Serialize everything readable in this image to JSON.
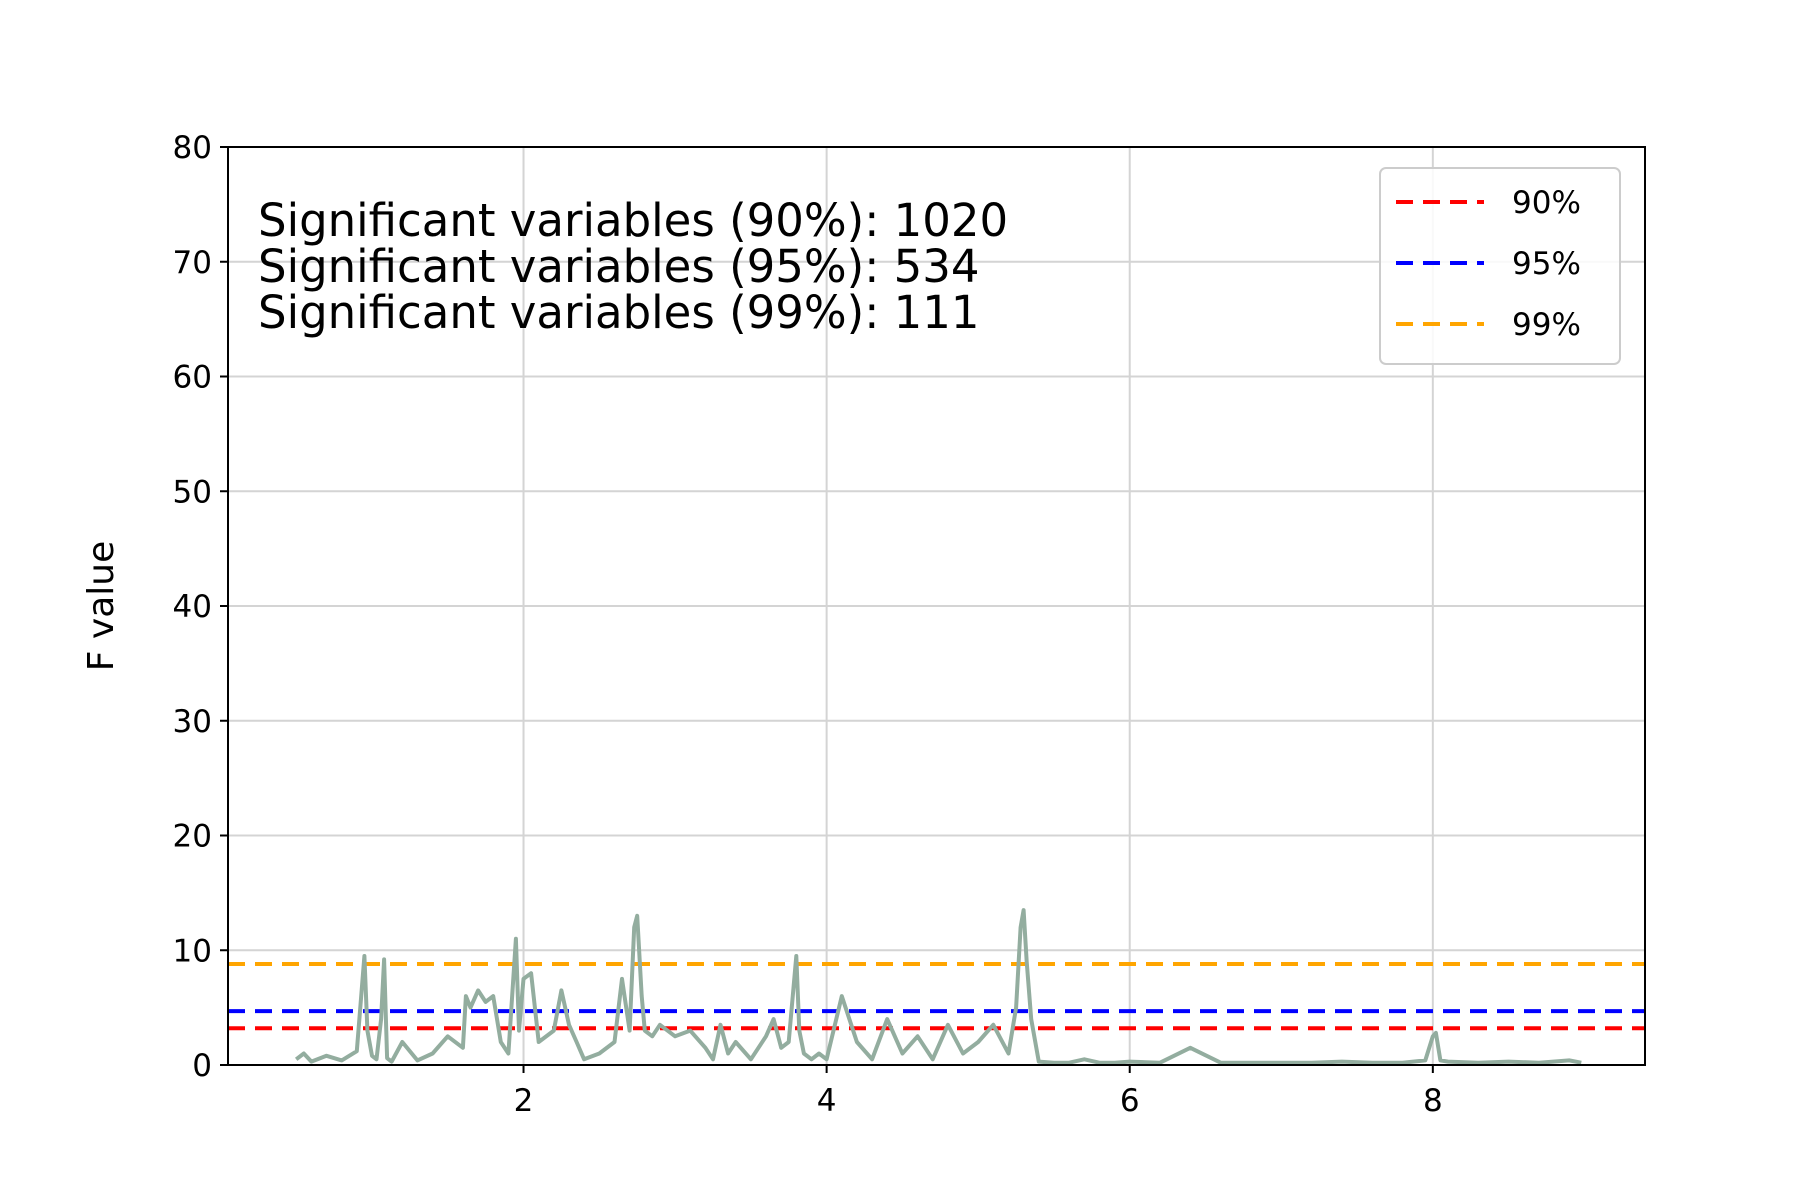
{
  "chart_data": {
    "type": "line",
    "title": "",
    "xlabel": "",
    "ylabel": "F value",
    "xlim": [
      0.05,
      9.4
    ],
    "ylim": [
      0,
      80
    ],
    "x_ticks": [
      2,
      4,
      6,
      8
    ],
    "y_ticks": [
      0,
      10,
      20,
      30,
      40,
      50,
      60,
      70,
      80
    ],
    "grid": true,
    "legend_position": "top-right",
    "annotations": [
      "Significant variables (90%): 1020",
      "Significant variables (95%): 534",
      "Significant variables (99%): 111"
    ],
    "thresholds": [
      {
        "name": "90%",
        "value": 3.2,
        "color": "#ff0000"
      },
      {
        "name": "95%",
        "value": 4.7,
        "color": "#0000ff"
      },
      {
        "name": "99%",
        "value": 8.8,
        "color": "#ffa500"
      }
    ],
    "series_color": "#93ad9f",
    "series": [
      {
        "x": [
          0.5,
          0.55,
          0.6,
          0.7,
          0.8,
          0.9,
          0.95,
          0.97,
          1.0,
          1.03,
          1.06,
          1.08,
          1.1,
          1.13,
          1.2,
          1.3,
          1.4,
          1.5,
          1.6,
          1.62,
          1.65,
          1.7,
          1.75,
          1.8,
          1.85,
          1.9,
          1.95,
          1.97,
          2.0,
          2.05,
          2.1,
          2.2,
          2.25,
          2.3,
          2.35,
          2.4,
          2.5,
          2.6,
          2.65,
          2.7,
          2.73,
          2.75,
          2.78,
          2.8,
          2.85,
          2.9,
          3.0,
          3.1,
          3.2,
          3.25,
          3.3,
          3.35,
          3.4,
          3.5,
          3.6,
          3.65,
          3.7,
          3.75,
          3.8,
          3.82,
          3.85,
          3.9,
          3.95,
          4.0,
          4.1,
          4.2,
          4.3,
          4.4,
          4.5,
          4.6,
          4.7,
          4.8,
          4.9,
          5.0,
          5.1,
          5.2,
          5.25,
          5.28,
          5.3,
          5.32,
          5.35,
          5.4,
          5.5,
          5.6,
          5.7,
          5.8,
          5.9,
          6.0,
          6.2,
          6.4,
          6.6,
          6.8,
          7.0,
          7.2,
          7.4,
          7.6,
          7.8,
          7.95,
          8.0,
          8.02,
          8.05,
          8.1,
          8.3,
          8.5,
          8.7,
          8.9,
          8.98
        ],
        "y": [
          0.5,
          1.0,
          0.3,
          0.8,
          0.4,
          1.2,
          9.5,
          3.0,
          0.8,
          0.5,
          4.0,
          9.2,
          0.6,
          0.3,
          2.0,
          0.4,
          1.0,
          2.5,
          1.5,
          6.0,
          5.0,
          6.5,
          5.5,
          6.0,
          2.0,
          1.0,
          11.0,
          3.0,
          7.5,
          8.0,
          2.0,
          3.0,
          6.5,
          3.5,
          2.0,
          0.5,
          1.0,
          2.0,
          7.5,
          3.0,
          12.0,
          13.0,
          6.0,
          3.0,
          2.5,
          3.5,
          2.5,
          3.0,
          1.5,
          0.5,
          3.5,
          1.0,
          2.0,
          0.5,
          2.5,
          4.0,
          1.5,
          2.0,
          9.5,
          3.0,
          1.0,
          0.5,
          1.0,
          0.5,
          6.0,
          2.0,
          0.5,
          4.0,
          1.0,
          2.5,
          0.5,
          3.5,
          1.0,
          2.0,
          3.5,
          1.0,
          5.0,
          12.0,
          13.5,
          9.0,
          4.0,
          0.3,
          0.2,
          0.2,
          0.5,
          0.2,
          0.2,
          0.3,
          0.2,
          1.5,
          0.2,
          0.2,
          0.2,
          0.2,
          0.3,
          0.2,
          0.2,
          0.4,
          2.5,
          2.8,
          0.4,
          0.3,
          0.2,
          0.3,
          0.2,
          0.4,
          0.2
        ]
      }
    ]
  }
}
